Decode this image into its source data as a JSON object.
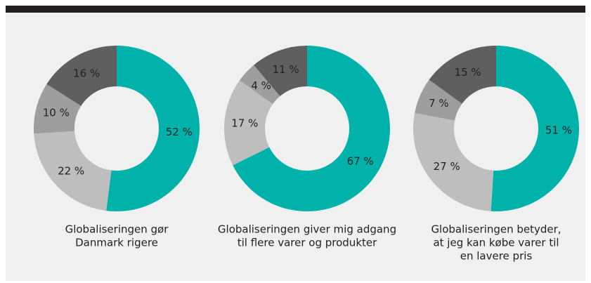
{
  "chart_data": [
    {
      "type": "pie",
      "title": [
        "Globaliseringen gør",
        "Danmark rigere"
      ],
      "values": [
        52,
        22,
        10,
        16
      ],
      "value_labels": [
        "52 %",
        "22 %",
        "10 %",
        "16 %"
      ],
      "colors": [
        "#00b2aa",
        "#bebebe",
        "#9e9e9e",
        "#5f5f5f"
      ],
      "donut": true
    },
    {
      "type": "pie",
      "title": [
        "Globaliseringen giver mig adgang",
        "til flere varer og produkter"
      ],
      "values": [
        67,
        17,
        4,
        11
      ],
      "value_labels": [
        "67 %",
        "17 %",
        "4 %",
        "11 %"
      ],
      "colors": [
        "#00b2aa",
        "#bebebe",
        "#9e9e9e",
        "#5f5f5f"
      ],
      "donut": true
    },
    {
      "type": "pie",
      "title": [
        "Globaliseringen betyder,",
        "at jeg kan købe varer til",
        "en lavere pris"
      ],
      "values": [
        51,
        27,
        7,
        15
      ],
      "value_labels": [
        "51 %",
        "27 %",
        "7 %",
        "15 %"
      ],
      "colors": [
        "#00b2aa",
        "#bebebe",
        "#9e9e9e",
        "#5f5f5f"
      ],
      "donut": true
    }
  ]
}
